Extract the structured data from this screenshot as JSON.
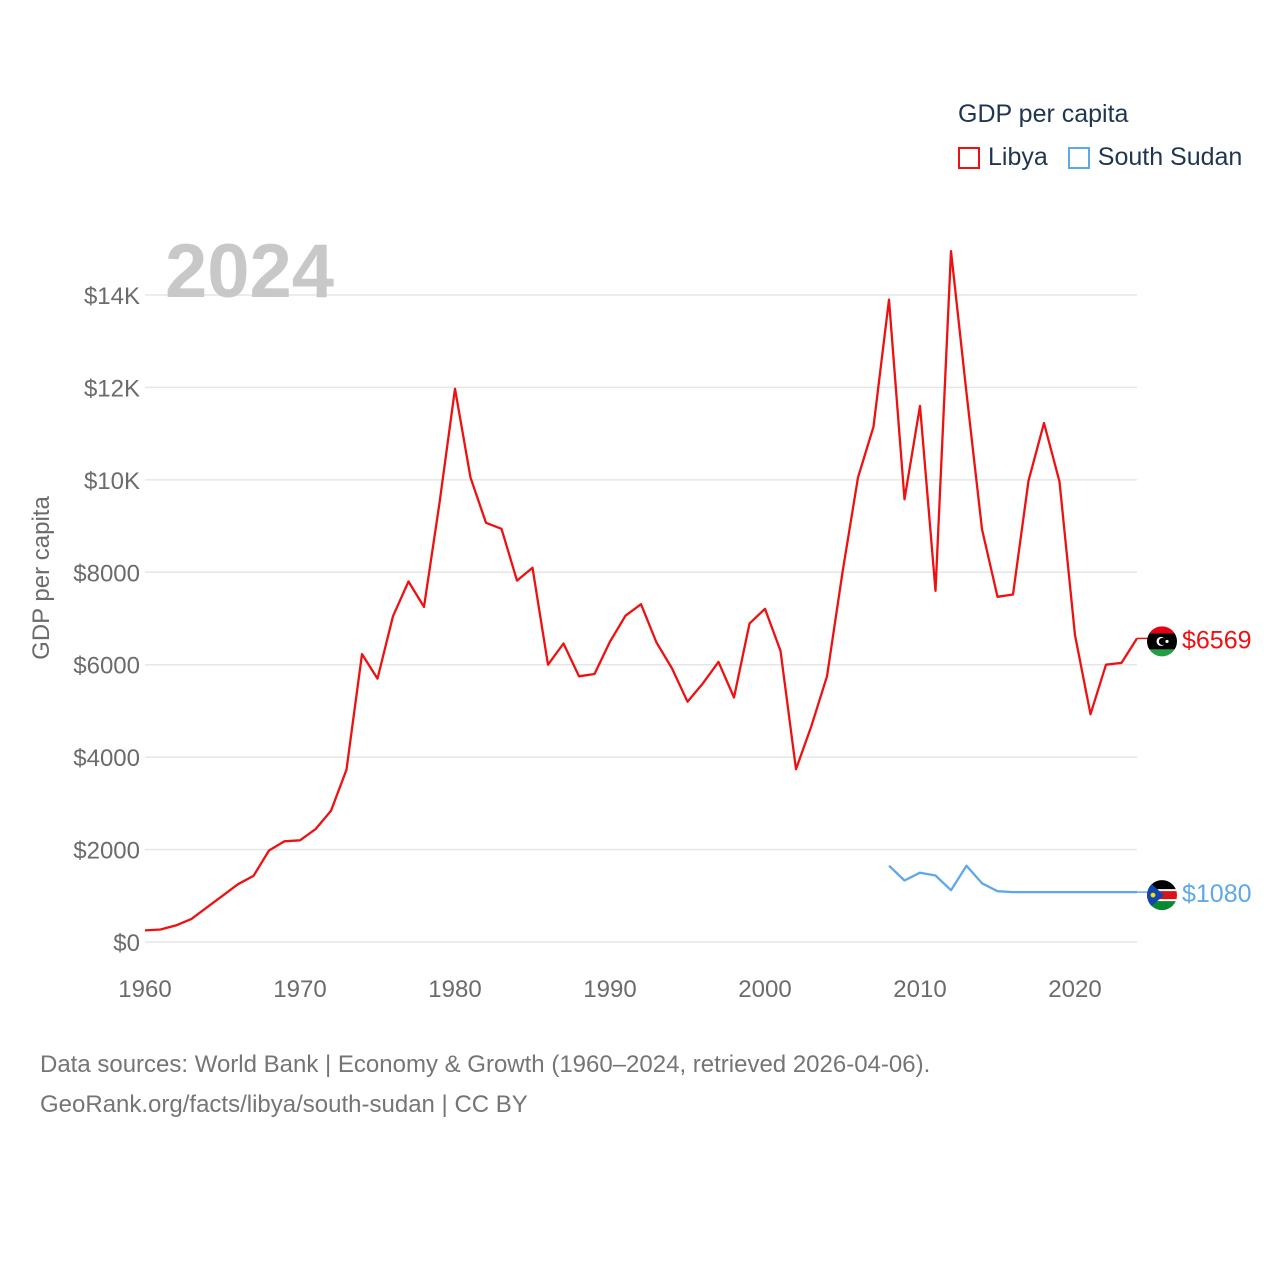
{
  "legend": {
    "title": "GDP per capita",
    "items": [
      "Libya",
      "South Sudan"
    ]
  },
  "year_label": "2024",
  "source": {
    "line1": "Data sources: World Bank | Economy & Growth (1960–2024, retrieved 2026-04-06).",
    "line2": "GeoRank.org/facts/libya/south-sudan | CC BY"
  },
  "colors": {
    "libya": "#ee1111",
    "south_sudan": "#5fa8e8",
    "grid": "#e6e6e6",
    "tick": "#6b6b6b"
  },
  "chart_data": {
    "type": "line",
    "title": "",
    "xlabel": "",
    "ylabel": "GDP per capita",
    "xlim": [
      1960,
      2024
    ],
    "ylim": [
      0,
      15000
    ],
    "x_ticks": [
      1960,
      1970,
      1980,
      1990,
      2000,
      2010,
      2020
    ],
    "y_ticks": [
      0,
      2000,
      4000,
      6000,
      8000,
      10000,
      12000,
      14000
    ],
    "y_tick_labels": [
      "$0",
      "$2000",
      "$4000",
      "$6000",
      "$8000",
      "$10K",
      "$12K",
      "$14K"
    ],
    "series": [
      {
        "name": "Libya",
        "end_label": "$6569",
        "x": [
          1960,
          1961,
          1962,
          1963,
          1964,
          1965,
          1966,
          1967,
          1968,
          1969,
          1970,
          1971,
          1972,
          1973,
          1974,
          1975,
          1976,
          1977,
          1978,
          1979,
          1980,
          1981,
          1982,
          1983,
          1984,
          1985,
          1986,
          1987,
          1988,
          1989,
          1990,
          1991,
          1992,
          1993,
          1994,
          1995,
          1996,
          1997,
          1998,
          1999,
          2000,
          2001,
          2002,
          2003,
          2004,
          2005,
          2006,
          2007,
          2008,
          2009,
          2010,
          2011,
          2012,
          2013,
          2014,
          2015,
          2016,
          2017,
          2018,
          2019,
          2020,
          2021,
          2022,
          2023,
          2024
        ],
        "values": [
          250,
          270,
          360,
          500,
          750,
          1000,
          1250,
          1430,
          1980,
          2180,
          2200,
          2440,
          2840,
          3730,
          6230,
          5700,
          7050,
          7800,
          7250,
          9500,
          11970,
          10050,
          9070,
          8940,
          7820,
          8100,
          6000,
          6460,
          5750,
          5800,
          6500,
          7060,
          7310,
          6480,
          5920,
          5200,
          5600,
          6060,
          5290,
          6890,
          7210,
          6300,
          3740,
          4680,
          5750,
          8000,
          10050,
          11150,
          13900,
          9580,
          11600,
          7600,
          14950,
          11880,
          8930,
          7470,
          7520,
          9980,
          11230,
          9960,
          6640,
          4930,
          6000,
          6040,
          6569
        ]
      },
      {
        "name": "South Sudan",
        "end_label": "$1080",
        "x": [
          2008,
          2009,
          2010,
          2011,
          2012,
          2013,
          2014,
          2015,
          2016,
          2017,
          2018,
          2019,
          2020,
          2021,
          2022,
          2023,
          2024
        ],
        "values": [
          1650,
          1330,
          1500,
          1440,
          1120,
          1650,
          1270,
          1100,
          1080,
          1080,
          1080,
          1080,
          1080,
          1080,
          1080,
          1080,
          1080
        ]
      }
    ]
  }
}
